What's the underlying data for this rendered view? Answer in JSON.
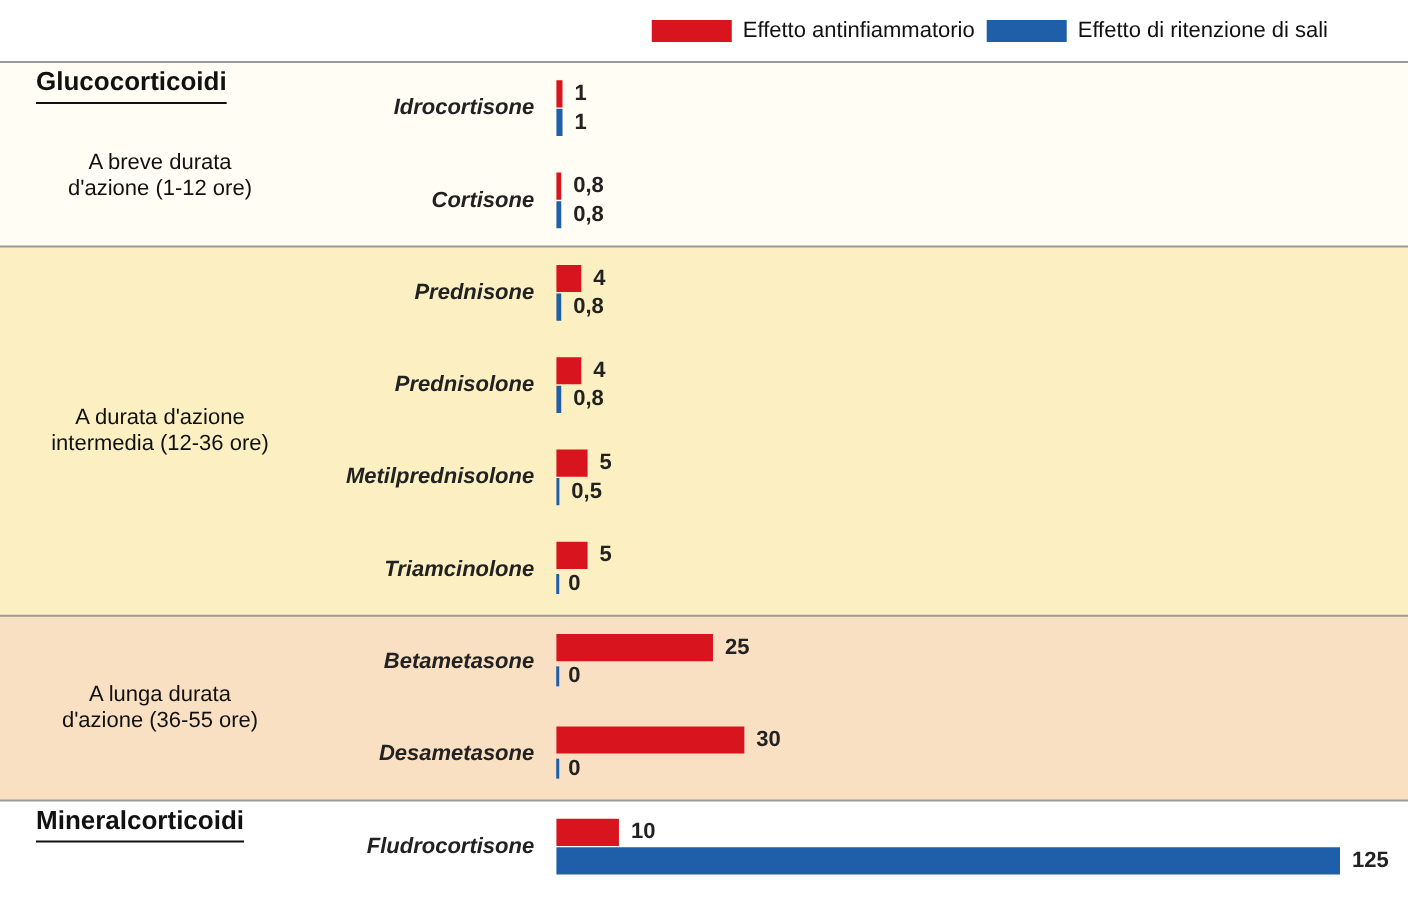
{
  "chart_data": {
    "type": "bar",
    "orientation": "horizontal",
    "categories": [
      "Idrocortisone",
      "Cortisone",
      "Prednisone",
      "Prednisolone",
      "Metilprednisolone",
      "Triamcinolone",
      "Betametasone",
      "Desametasone",
      "Fludrocortisone"
    ],
    "series": [
      {
        "name": "Effetto antinfiammatorio",
        "color": "#d8141e",
        "values": [
          1,
          0.8,
          4,
          4,
          5,
          5,
          25,
          30,
          10
        ],
        "value_labels": [
          "1",
          "0,8",
          "4",
          "4",
          "5",
          "5",
          "25",
          "30",
          "10"
        ]
      },
      {
        "name": "Effetto di ritenzione di sali",
        "color": "#1f5ea8",
        "values": [
          1,
          0.8,
          0.8,
          0.8,
          0.5,
          0,
          0,
          0,
          125
        ],
        "value_labels": [
          "1",
          "0,8",
          "0,8",
          "0,8",
          "0,5",
          "0",
          "0",
          "0",
          "125"
        ]
      }
    ],
    "xlim": [
      0,
      125
    ],
    "bands": [
      {
        "axis": "y",
        "from": "Idrocortisone",
        "to": "Cortisone",
        "label": "A breve durata d'azione (1-12 ore)",
        "color": "#fffdf4"
      },
      {
        "axis": "y",
        "from": "Prednisone",
        "to": "Triamcinolone",
        "label": "A durata d'azione intermedia (12-36 ore)",
        "color": "#fcf0c2"
      },
      {
        "axis": "y",
        "from": "Betametasone",
        "to": "Desametasone",
        "label": "A lunga durata d'azione (36-55 ore)",
        "color": "#f9e0c2"
      }
    ],
    "annotations": [
      "Glucocorticoidi",
      "Mineralcorticoidi"
    ],
    "legend": "top right",
    "grid": false
  }
}
